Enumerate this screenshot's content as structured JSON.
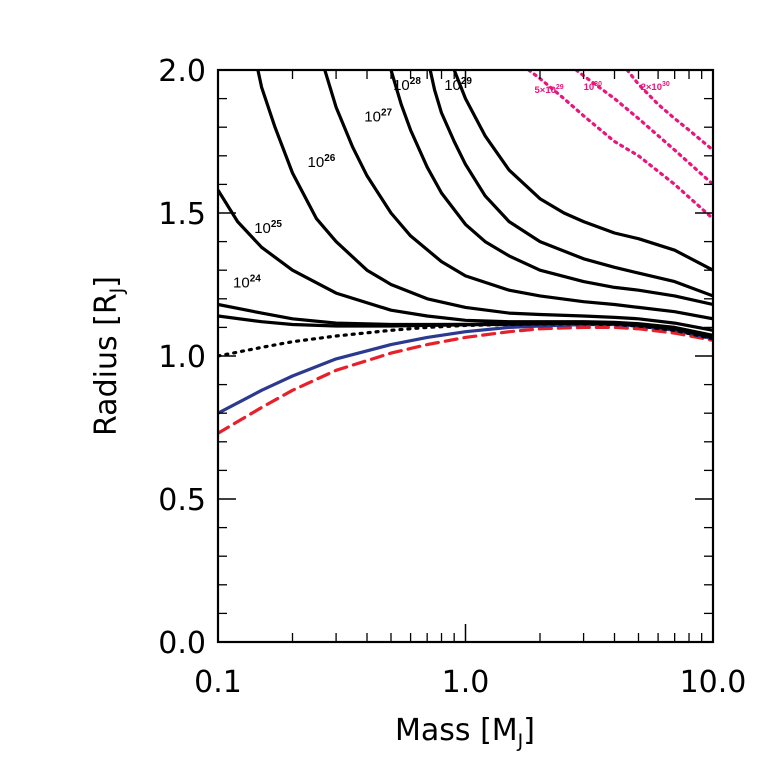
{
  "chart_data": {
    "type": "line",
    "xlabel": {
      "text": "Mass [M",
      "sub": "J",
      "close": "]"
    },
    "ylabel": {
      "text": "Radius [R",
      "sub": "J",
      "close": "]"
    },
    "x_scale": "log",
    "xlim": [
      0.1,
      10.0
    ],
    "ylim": [
      0.0,
      2.0
    ],
    "x_ticks": [
      {
        "value": 0.1,
        "label": "0.1"
      },
      {
        "value": 1.0,
        "label": "1.0"
      },
      {
        "value": 10.0,
        "label": "10.0"
      }
    ],
    "y_ticks": [
      {
        "value": 0.0,
        "label": "0.0"
      },
      {
        "value": 0.5,
        "label": "0.5"
      },
      {
        "value": 1.0,
        "label": "1.0"
      },
      {
        "value": 1.5,
        "label": "1.5"
      },
      {
        "value": 2.0,
        "label": "2.0"
      }
    ],
    "grid": false,
    "colors": {
      "solid": "#000000",
      "blue": "#2b3990",
      "red": "#e8202a",
      "pink": "#e8157a"
    },
    "series": [
      {
        "style": "dashed-red",
        "x": [
          0.1,
          0.15,
          0.2,
          0.3,
          0.5,
          0.7,
          1.0,
          1.5,
          2.0,
          3.0,
          4.0,
          5.0,
          7.0,
          10.0
        ],
        "y": [
          0.73,
          0.82,
          0.88,
          0.95,
          1.01,
          1.04,
          1.065,
          1.085,
          1.095,
          1.1,
          1.1,
          1.095,
          1.08,
          1.055
        ]
      },
      {
        "style": "solid-blue",
        "x": [
          0.1,
          0.15,
          0.2,
          0.3,
          0.5,
          0.7,
          1.0,
          1.5,
          2.0,
          3.0,
          4.0,
          5.0,
          7.0,
          10.0
        ],
        "y": [
          0.8,
          0.88,
          0.93,
          0.99,
          1.04,
          1.065,
          1.085,
          1.1,
          1.105,
          1.11,
          1.11,
          1.105,
          1.09,
          1.06
        ]
      },
      {
        "style": "dotted-black",
        "x": [
          0.1,
          0.15,
          0.2,
          0.3,
          0.5,
          0.7,
          1.0,
          1.5,
          2.0,
          3.0,
          4.0,
          5.0,
          7.0,
          10.0
        ],
        "y": [
          1.0,
          1.03,
          1.05,
          1.07,
          1.09,
          1.1,
          1.107,
          1.11,
          1.112,
          1.113,
          1.11,
          1.105,
          1.09,
          1.06
        ]
      },
      {
        "style": "solid-black",
        "x": [
          0.1,
          0.15,
          0.2,
          0.3,
          0.5,
          0.7,
          1.0,
          1.5,
          2.0,
          3.0,
          4.0,
          5.0,
          7.0,
          10.0
        ],
        "y": [
          1.14,
          1.12,
          1.11,
          1.105,
          1.105,
          1.107,
          1.109,
          1.111,
          1.113,
          1.115,
          1.113,
          1.108,
          1.095,
          1.065
        ]
      },
      {
        "style": "solid-black",
        "x": [
          0.1,
          0.15,
          0.2,
          0.3,
          0.5,
          0.7,
          1.0,
          1.5,
          2.0,
          3.0,
          4.0,
          5.0,
          7.0,
          10.0
        ],
        "y": [
          1.18,
          1.15,
          1.13,
          1.115,
          1.11,
          1.11,
          1.111,
          1.113,
          1.115,
          1.117,
          1.115,
          1.11,
          1.097,
          1.068
        ]
      },
      {
        "style": "solid-black",
        "x": [
          0.1,
          0.12,
          0.15,
          0.2,
          0.3,
          0.5,
          0.7,
          1.0,
          1.5,
          2.0,
          3.0,
          4.0,
          5.0,
          7.0,
          10.0
        ],
        "y": [
          1.58,
          1.47,
          1.38,
          1.3,
          1.22,
          1.16,
          1.14,
          1.125,
          1.12,
          1.12,
          1.12,
          1.118,
          1.113,
          1.1,
          1.072
        ]
      },
      {
        "style": "solid-black",
        "x": [
          0.145,
          0.15,
          0.17,
          0.2,
          0.25,
          0.3,
          0.4,
          0.5,
          0.7,
          1.0,
          1.5,
          2.0,
          3.0,
          4.0,
          5.0,
          7.0,
          10.0
        ],
        "y": [
          2.0,
          1.94,
          1.8,
          1.64,
          1.48,
          1.4,
          1.3,
          1.25,
          1.2,
          1.17,
          1.15,
          1.145,
          1.14,
          1.135,
          1.13,
          1.115,
          1.09
        ]
      },
      {
        "style": "solid-black",
        "x": [
          0.27,
          0.3,
          0.35,
          0.4,
          0.5,
          0.6,
          0.8,
          1.0,
          1.5,
          2.0,
          3.0,
          4.0,
          5.0,
          7.0,
          10.0
        ],
        "y": [
          2.0,
          1.87,
          1.73,
          1.63,
          1.5,
          1.42,
          1.33,
          1.28,
          1.23,
          1.21,
          1.19,
          1.18,
          1.17,
          1.155,
          1.13
        ]
      },
      {
        "style": "solid-black",
        "x": [
          0.5,
          0.55,
          0.6,
          0.7,
          0.8,
          1.0,
          1.2,
          1.5,
          2.0,
          3.0,
          4.0,
          5.0,
          7.0,
          10.0
        ],
        "y": [
          2.0,
          1.88,
          1.79,
          1.66,
          1.57,
          1.46,
          1.4,
          1.35,
          1.3,
          1.26,
          1.24,
          1.23,
          1.21,
          1.18
        ]
      },
      {
        "style": "solid-black",
        "x": [
          0.72,
          0.75,
          0.8,
          0.9,
          1.0,
          1.2,
          1.5,
          2.0,
          3.0,
          4.0,
          5.0,
          7.0,
          10.0
        ],
        "y": [
          2.0,
          1.93,
          1.85,
          1.75,
          1.67,
          1.56,
          1.47,
          1.4,
          1.34,
          1.31,
          1.29,
          1.26,
          1.21
        ]
      },
      {
        "style": "solid-black",
        "x": [
          0.9,
          1.0,
          1.2,
          1.5,
          2.0,
          2.5,
          3.0,
          4.0,
          5.0,
          7.0,
          10.0
        ],
        "y": [
          2.0,
          1.9,
          1.77,
          1.65,
          1.55,
          1.5,
          1.47,
          1.43,
          1.41,
          1.37,
          1.3
        ]
      },
      {
        "style": "dotted-pink",
        "x": [
          1.8,
          2.0,
          2.5,
          3.0,
          4.0,
          5.0,
          7.0,
          10.0
        ],
        "y": [
          2.0,
          1.97,
          1.9,
          1.84,
          1.75,
          1.7,
          1.6,
          1.48
        ]
      },
      {
        "style": "dotted-pink",
        "x": [
          2.8,
          3.0,
          4.0,
          5.0,
          7.0,
          10.0
        ],
        "y": [
          2.0,
          1.98,
          1.9,
          1.83,
          1.72,
          1.6
        ]
      },
      {
        "style": "dotted-pink",
        "x": [
          4.5,
          5.0,
          6.0,
          7.0,
          8.0,
          10.0
        ],
        "y": [
          2.0,
          1.95,
          1.88,
          1.83,
          1.79,
          1.72
        ]
      }
    ],
    "annotations": [
      {
        "base": "10",
        "exp": "24",
        "x": 0.115,
        "y": 1.24,
        "color": "#000000",
        "kind": "curve"
      },
      {
        "base": "10",
        "exp": "25",
        "x": 0.14,
        "y": 1.43,
        "color": "#000000",
        "kind": "curve"
      },
      {
        "base": "10",
        "exp": "26",
        "x": 0.23,
        "y": 1.66,
        "color": "#000000",
        "kind": "curve"
      },
      {
        "base": "10",
        "exp": "27",
        "x": 0.39,
        "y": 1.82,
        "color": "#000000",
        "kind": "curve"
      },
      {
        "base": "10",
        "exp": "28",
        "x": 0.51,
        "y": 1.93,
        "color": "#000000",
        "kind": "curve"
      },
      {
        "base": "10",
        "exp": "29",
        "x": 0.82,
        "y": 1.93,
        "color": "#000000",
        "kind": "curve"
      },
      {
        "base": "5×10",
        "exp": "29",
        "x": 1.9,
        "y": 1.92,
        "color": "#e8157a",
        "kind": "pink"
      },
      {
        "base": "10",
        "exp": "30",
        "x": 3.0,
        "y": 1.93,
        "color": "#e8157a",
        "kind": "pink"
      },
      {
        "base": "2×10",
        "exp": "30",
        "x": 5.1,
        "y": 1.93,
        "color": "#e8157a",
        "kind": "pink"
      }
    ]
  }
}
